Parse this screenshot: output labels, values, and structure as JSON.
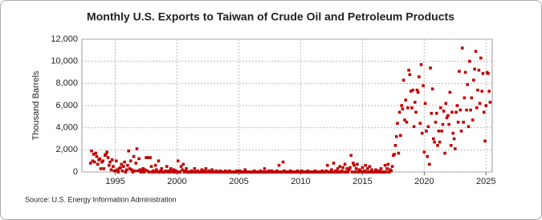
{
  "chart_data": {
    "type": "scatter",
    "title": "Monthly U.S. Exports to Taiwan of Crude Oil and Petroleum Products",
    "y_label": "Thousand Barrels",
    "source": "Source: U.S. Energy Information Administration",
    "color": "#c00000",
    "grid": true,
    "xlim": [
      1992.3,
      2025.5
    ],
    "xticks": [
      1995,
      2000,
      2005,
      2010,
      2015,
      2020,
      2025
    ],
    "ylim": [
      0,
      12000
    ],
    "yticks": [
      0,
      {
        "value": 2000,
        "label": "2,000"
      },
      {
        "value": 4000,
        "label": "4,000"
      },
      {
        "value": 6000,
        "label": "6,000"
      },
      {
        "value": 8000,
        "label": "8,000"
      },
      {
        "value": 10000,
        "label": "10,000"
      },
      {
        "value": 12000,
        "label": "12,000"
      }
    ],
    "x": [
      1993,
      1993.08,
      1993.17,
      1993.25,
      1993.33,
      1993.42,
      1993.5,
      1993.58,
      1993.67,
      1993.75,
      1993.83,
      1993.92,
      1994,
      1994.08,
      1994.17,
      1994.25,
      1994.33,
      1994.42,
      1994.5,
      1994.58,
      1994.67,
      1994.75,
      1994.83,
      1994.92,
      1995,
      1995.08,
      1995.17,
      1995.25,
      1995.33,
      1995.42,
      1995.5,
      1995.58,
      1995.67,
      1995.75,
      1995.83,
      1995.92,
      1996,
      1996.08,
      1996.17,
      1996.25,
      1996.33,
      1996.42,
      1996.5,
      1996.58,
      1996.67,
      1996.75,
      1996.83,
      1996.92,
      1997,
      1997.08,
      1997.17,
      1997.25,
      1997.33,
      1997.42,
      1997.5,
      1997.58,
      1997.67,
      1997.75,
      1997.83,
      1997.92,
      1998,
      1998.08,
      1998.17,
      1998.25,
      1998.33,
      1998.42,
      1998.5,
      1998.58,
      1998.67,
      1998.75,
      1998.83,
      1998.92,
      1999,
      1999.08,
      1999.17,
      1999.25,
      1999.33,
      1999.42,
      1999.5,
      1999.58,
      1999.67,
      1999.75,
      1999.83,
      1999.92,
      2000,
      2000.08,
      2000.17,
      2000.25,
      2000.33,
      2000.42,
      2000.5,
      2000.58,
      2000.67,
      2000.75,
      2000.83,
      2000.92,
      2001,
      2001.08,
      2001.17,
      2001.25,
      2001.33,
      2001.42,
      2001.5,
      2001.58,
      2001.67,
      2001.75,
      2001.83,
      2001.92,
      2002,
      2002.08,
      2002.17,
      2002.25,
      2002.33,
      2002.42,
      2002.5,
      2002.58,
      2002.67,
      2002.75,
      2002.83,
      2002.92,
      2003,
      2003.08,
      2003.17,
      2003.25,
      2003.33,
      2003.42,
      2003.5,
      2003.58,
      2003.67,
      2003.75,
      2003.83,
      2003.92,
      2004,
      2004.08,
      2004.17,
      2004.25,
      2004.33,
      2004.42,
      2004.5,
      2004.58,
      2004.67,
      2004.75,
      2004.83,
      2004.92,
      2005,
      2005.08,
      2005.17,
      2005.25,
      2005.33,
      2005.42,
      2005.5,
      2005.58,
      2005.67,
      2005.75,
      2005.83,
      2005.92,
      2006,
      2006.08,
      2006.17,
      2006.25,
      2006.33,
      2006.42,
      2006.5,
      2006.58,
      2006.67,
      2006.75,
      2006.83,
      2006.92,
      2007,
      2007.08,
      2007.17,
      2007.25,
      2007.33,
      2007.42,
      2007.5,
      2007.58,
      2007.67,
      2007.75,
      2007.83,
      2007.92,
      2008,
      2008.08,
      2008.17,
      2008.25,
      2008.33,
      2008.42,
      2008.5,
      2008.58,
      2008.67,
      2008.75,
      2008.83,
      2008.92,
      2009,
      2009.08,
      2009.17,
      2009.25,
      2009.33,
      2009.42,
      2009.5,
      2009.58,
      2009.67,
      2009.75,
      2009.83,
      2009.92,
      2010,
      2010.08,
      2010.17,
      2010.25,
      2010.33,
      2010.42,
      2010.5,
      2010.58,
      2010.67,
      2010.75,
      2010.83,
      2010.92,
      2011,
      2011.08,
      2011.17,
      2011.25,
      2011.33,
      2011.42,
      2011.5,
      2011.58,
      2011.67,
      2011.75,
      2011.83,
      2011.92,
      2012,
      2012.08,
      2012.17,
      2012.25,
      2012.33,
      2012.42,
      2012.5,
      2012.58,
      2012.67,
      2012.75,
      2012.83,
      2012.92,
      2013,
      2013.08,
      2013.17,
      2013.25,
      2013.33,
      2013.42,
      2013.5,
      2013.58,
      2013.67,
      2013.75,
      2013.83,
      2013.92,
      2014,
      2014.08,
      2014.17,
      2014.25,
      2014.33,
      2014.42,
      2014.5,
      2014.58,
      2014.67,
      2014.75,
      2014.83,
      2014.92,
      2015,
      2015.08,
      2015.17,
      2015.25,
      2015.33,
      2015.42,
      2015.5,
      2015.58,
      2015.67,
      2015.75,
      2015.83,
      2015.92,
      2016,
      2016.08,
      2016.17,
      2016.25,
      2016.33,
      2016.42,
      2016.5,
      2016.58,
      2016.67,
      2016.75,
      2016.83,
      2016.92,
      2017,
      2017.08,
      2017.17,
      2017.25,
      2017.33,
      2017.42,
      2017.5,
      2017.58,
      2017.67,
      2017.75,
      2017.83,
      2017.92,
      2018,
      2018.08,
      2018.17,
      2018.25,
      2018.33,
      2018.42,
      2018.5,
      2018.58,
      2018.67,
      2018.75,
      2018.83,
      2018.92,
      2019,
      2019.08,
      2019.17,
      2019.25,
      2019.33,
      2019.42,
      2019.5,
      2019.58,
      2019.67,
      2019.75,
      2019.83,
      2019.92,
      2020,
      2020.08,
      2020.17,
      2020.25,
      2020.33,
      2020.42,
      2020.5,
      2020.58,
      2020.67,
      2020.75,
      2020.83,
      2020.92,
      2021,
      2021.08,
      2021.17,
      2021.25,
      2021.33,
      2021.42,
      2021.5,
      2021.58,
      2021.67,
      2021.75,
      2021.83,
      2021.92,
      2022,
      2022.08,
      2022.17,
      2022.25,
      2022.33,
      2022.42,
      2022.5,
      2022.58,
      2022.67,
      2022.75,
      2022.83,
      2022.92,
      2023,
      2023.08,
      2023.17,
      2023.25,
      2023.33,
      2023.42,
      2023.5,
      2023.58,
      2023.67,
      2023.75,
      2023.83,
      2023.92,
      2024,
      2024.08,
      2024.17,
      2024.25,
      2024.33,
      2024.42,
      2024.5,
      2024.58,
      2024.67,
      2024.75,
      2024.83,
      2024.92,
      2025,
      2025.08,
      2025.17,
      2025.25,
      2025.33
    ],
    "values": [
      800,
      1900,
      1000,
      1600,
      900,
      1700,
      1400,
      700,
      1100,
      1200,
      300,
      900,
      1000,
      300,
      1500,
      1600,
      1800,
      1300,
      600,
      900,
      200,
      1100,
      500,
      100,
      100,
      1000,
      200,
      0,
      300,
      400,
      700,
      100,
      500,
      900,
      0,
      200,
      600,
      1900,
      300,
      1000,
      200,
      0,
      1400,
      100,
      800,
      2100,
      100,
      1200,
      200,
      0,
      100,
      300,
      0,
      200,
      1300,
      100,
      1300,
      0,
      1300,
      500,
      0,
      100,
      0,
      600,
      200,
      0,
      1000,
      0,
      100,
      300,
      0,
      0,
      0,
      100,
      500,
      0,
      100,
      0,
      300,
      100,
      0,
      200,
      0,
      100,
      0,
      1000,
      0,
      0,
      500,
      200,
      700,
      0,
      100,
      300,
      0,
      0,
      0,
      0,
      100,
      0,
      0,
      300,
      0,
      0,
      100,
      0,
      0,
      0,
      200,
      0,
      100,
      0,
      300,
      0,
      0,
      100,
      0,
      0,
      200,
      0,
      0,
      0,
      100,
      0,
      0,
      0,
      100,
      0,
      0,
      0,
      0,
      100,
      0,
      0,
      0,
      100,
      0,
      0,
      0,
      0,
      0,
      0,
      100,
      0,
      0,
      100,
      0,
      0,
      0,
      0,
      200,
      0,
      0,
      0,
      0,
      0,
      0,
      0,
      0,
      100,
      0,
      0,
      0,
      0,
      0,
      100,
      0,
      0,
      0,
      300,
      0,
      0,
      0,
      100,
      0,
      0,
      100,
      0,
      0,
      0,
      0,
      100,
      0,
      600,
      0,
      0,
      0,
      900,
      100,
      0,
      0,
      0,
      0,
      0,
      100,
      0,
      0,
      0,
      0,
      0,
      0,
      100,
      0,
      0,
      0,
      100,
      0,
      0,
      0,
      0,
      0,
      100,
      0,
      0,
      0,
      0,
      0,
      0,
      100,
      0,
      0,
      0,
      0,
      0,
      0,
      100,
      0,
      0,
      0,
      100,
      600,
      0,
      0,
      0,
      200,
      0,
      800,
      0,
      100,
      0,
      300,
      0,
      500,
      0,
      100,
      400,
      0,
      700,
      0,
      300,
      0,
      200,
      400,
      1500,
      0,
      800,
      600,
      0,
      300,
      700,
      0,
      200,
      100,
      0,
      400,
      0,
      100,
      600,
      0,
      300,
      0,
      500,
      0,
      200,
      0,
      0,
      0,
      200,
      0,
      0,
      100,
      0,
      300,
      0,
      0,
      0,
      600,
      0,
      300,
      700,
      0,
      200,
      100,
      500,
      1500,
      1600,
      2400,
      3200,
      4400,
      1700,
      5400,
      3300,
      6000,
      5700,
      8300,
      4700,
      6500,
      4500,
      5800,
      9200,
      8800,
      7300,
      5800,
      7400,
      4100,
      6300,
      5400,
      7400,
      7200,
      8600,
      4400,
      9700,
      3500,
      7800,
      1800,
      6200,
      3700,
      1400,
      4100,
      700,
      9400,
      5300,
      7500,
      3000,
      2700,
      4500,
      5300,
      2400,
      3700,
      2700,
      5800,
      3700,
      4300,
      5500,
      1700,
      6200,
      4900,
      5100,
      4300,
      7200,
      2400,
      5400,
      3500,
      3000,
      2100,
      5400,
      6000,
      4500,
      9100,
      5600,
      3700,
      11200,
      4500,
      6700,
      9000,
      5600,
      7900,
      4100,
      10000,
      5600,
      6700,
      4700,
      8300,
      9300,
      10900,
      5800,
      7400,
      9200,
      6200,
      10300,
      7300,
      8900,
      5400,
      2800,
      6000,
      9000,
      8900,
      7300,
      6300
    ]
  }
}
